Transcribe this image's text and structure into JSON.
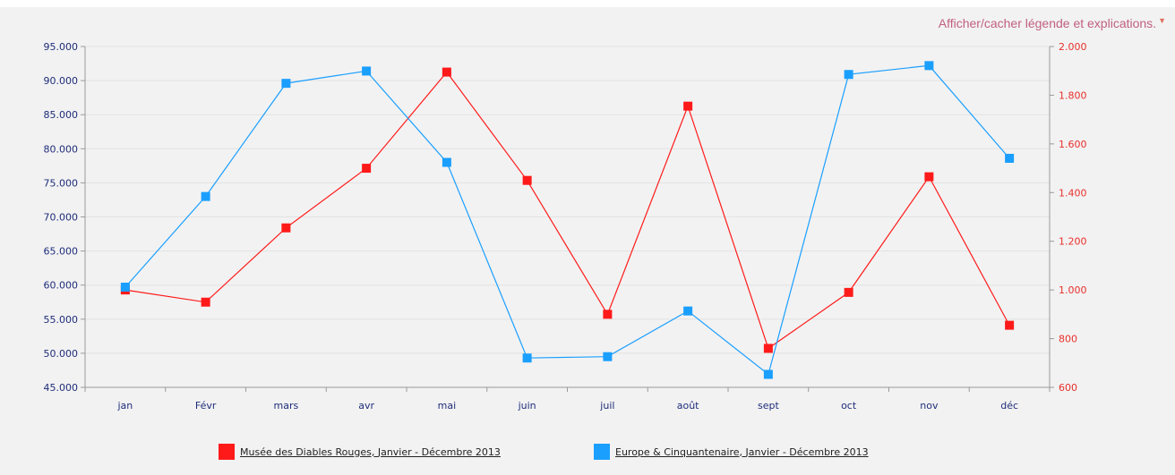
{
  "toggle_label": "Afficher/cacher légende et explications.",
  "chart_data": {
    "type": "line",
    "categories": [
      "jan",
      "Févr",
      "mars",
      "avr",
      "mai",
      "juin",
      "juil",
      "août",
      "sept",
      "oct",
      "nov",
      "déc"
    ],
    "y_left": {
      "ylim": [
        45000,
        95000
      ],
      "ticks": [
        "45.000",
        "50.000",
        "55.000",
        "60.000",
        "65.000",
        "70.000",
        "75.000",
        "80.000",
        "85.000",
        "90.000",
        "95.000"
      ],
      "color": "#1f2d7a"
    },
    "y_right": {
      "ylim": [
        600,
        2000
      ],
      "ticks": [
        "600",
        "800",
        "1.000",
        "1.200",
        "1.400",
        "1.600",
        "1.800",
        "2.000"
      ],
      "color": "#e8302b"
    },
    "grid": true,
    "legend_position": "bottom",
    "series": [
      {
        "name": "Musée des Diables Rouges, Janvier - Décembre 2013",
        "axis": "right",
        "color": "#ff1a1a",
        "values": [
          1000,
          950,
          1255,
          1500,
          1895,
          1450,
          900,
          1755,
          760,
          990,
          1465,
          855
        ]
      },
      {
        "name": "Europe & Cinquantenaire, Janvier - Décembre 2013",
        "axis": "left",
        "color": "#1a9fff",
        "values": [
          59700,
          73000,
          89600,
          91400,
          78000,
          49300,
          49500,
          56200,
          46900,
          90900,
          92200,
          78600
        ]
      }
    ]
  }
}
